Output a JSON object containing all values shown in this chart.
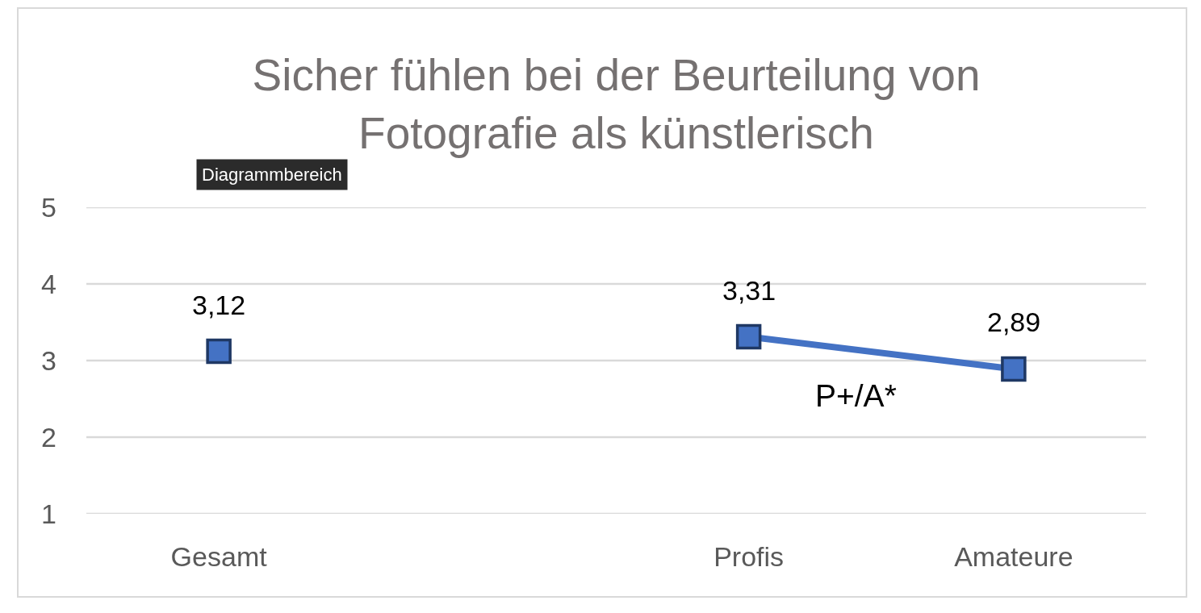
{
  "chart_data": {
    "type": "line",
    "title": "Sicher fühlen bei der Beurteilung von\nFotografie als künstlerisch",
    "categories": [
      "Gesamt",
      null,
      "Profis",
      "Amateure"
    ],
    "series": [
      {
        "color": "#4472c4",
        "values": [
          3.12,
          null,
          3.31,
          2.89
        ],
        "value_labels": [
          "3,12",
          null,
          "3,31",
          "2,89"
        ]
      }
    ],
    "ylim": [
      1,
      5
    ],
    "yticks": [
      1,
      2,
      3,
      4,
      5
    ],
    "grid": "y",
    "marker": "square",
    "line_style": "solid",
    "annotations": [
      "P+/A*",
      "Diagrammbereich"
    ]
  }
}
